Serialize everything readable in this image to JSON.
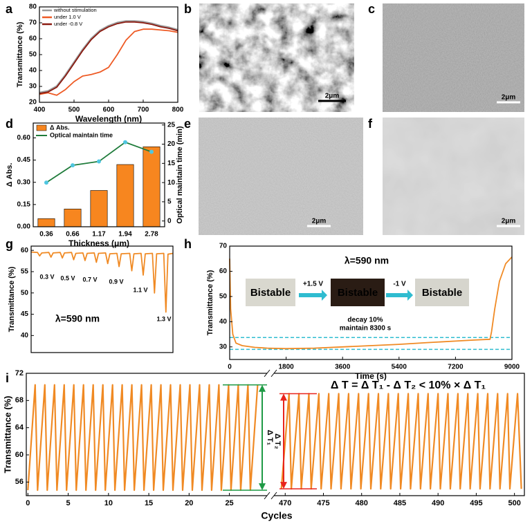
{
  "panel_labels": [
    "a",
    "b",
    "c",
    "d",
    "e",
    "f",
    "g",
    "h",
    "i"
  ],
  "images": [
    {
      "scale_bar": "2μm"
    },
    {
      "scale_bar": "2μm"
    },
    {
      "scale_bar": "2μm"
    },
    {
      "scale_bar": "2μm"
    }
  ],
  "chart_data": [
    {
      "type": "line",
      "x_label": "Wavelength (nm)",
      "y_label": "Transmittance (%)",
      "xlim": [
        400,
        800
      ],
      "ylim": [
        20,
        80
      ],
      "xticks": [
        400,
        500,
        600,
        700,
        800
      ],
      "yticks": [
        20,
        30,
        40,
        50,
        60,
        70,
        80
      ],
      "legend": "upper left",
      "x": [
        400,
        425,
        450,
        475,
        500,
        525,
        550,
        575,
        600,
        625,
        650,
        675,
        700,
        725,
        750,
        775,
        800
      ],
      "series": [
        {
          "name": "without stimulation",
          "color": "#9a9a9a",
          "values": [
            26,
            27,
            30,
            37,
            45,
            53,
            60,
            65,
            68,
            70,
            71,
            71,
            70.5,
            69.5,
            68,
            67,
            65.5
          ]
        },
        {
          "name": "under 1.0 V",
          "color": "#ee5a24",
          "values": [
            25,
            26,
            24.5,
            28,
            33,
            36.5,
            37.5,
            39,
            42,
            50,
            59,
            64.5,
            66,
            66,
            65.5,
            65,
            64
          ]
        },
        {
          "name": "under -0.8 V",
          "color": "#8b1a10",
          "values": [
            25.5,
            26.5,
            29.5,
            36.5,
            44.5,
            52.5,
            59.5,
            64.5,
            67.5,
            69.5,
            70.5,
            70.5,
            70,
            69,
            67.5,
            66.5,
            65
          ]
        }
      ]
    },
    {
      "type": "combo",
      "x_label": "Thickness (μm)",
      "y_label": "Δ Abs.",
      "y2_label": "Optical maintain time (min)",
      "categories": [
        "0.36",
        "0.66",
        "1.17",
        "1.94",
        "2.78"
      ],
      "ylim": [
        0,
        0.7
      ],
      "yticks": [
        {
          "value": 0,
          "label": "0.00"
        },
        0.15,
        {
          "value": 0.3,
          "label": "0.30"
        },
        0.45,
        {
          "value": 0.6,
          "label": "0.60"
        }
      ],
      "y2lim": [
        -1.5,
        25.5
      ],
      "y2ticks": [
        0,
        5,
        10,
        15,
        20,
        25
      ],
      "legend": "upper left",
      "series": [
        {
          "name": "Δ Abs.",
          "type": "bar",
          "color": "#f7861f",
          "values": [
            0.055,
            0.12,
            0.245,
            0.42,
            0.54
          ]
        },
        {
          "name": "Optical maintain time",
          "type": "line",
          "axis": "y2",
          "color": "#1e7b3a",
          "marker_color": "#4fc6e0",
          "values": [
            10,
            14.5,
            15.5,
            20.5,
            18
          ]
        }
      ]
    },
    {
      "type": "line",
      "y_label": "Transmittance (%)",
      "xlim": [
        0,
        100
      ],
      "ylim": [
        36,
        61
      ],
      "yticks": [
        40,
        45,
        50,
        55,
        60
      ],
      "color": "#f08a24",
      "annotations": [
        "0.3 V",
        "0.5 V",
        "0.7 V",
        "0.9 V",
        "1.1 V",
        "1.3 V",
        "λ=590 nm"
      ],
      "x": [
        0,
        4.5,
        6,
        7.5,
        12.5,
        14,
        15.5,
        20.5,
        22,
        23.5,
        28.5,
        30,
        31.5,
        36.5,
        38,
        39.5,
        44.5,
        46,
        47.5,
        52.5,
        54,
        55.5,
        60.5,
        62,
        63.5,
        69.5,
        71,
        72.5,
        77.5,
        79,
        80.5,
        85.5,
        87,
        88.5,
        93.5,
        95,
        96.5,
        100
      ],
      "values": [
        59.6,
        59.5,
        58.7,
        59.4,
        59.5,
        58.4,
        59.4,
        59.5,
        58.2,
        59.4,
        59.5,
        57.8,
        59.3,
        59.4,
        57.6,
        59.3,
        59.4,
        57.2,
        59.3,
        59.4,
        56.9,
        59.2,
        59.3,
        56.2,
        59.2,
        59.3,
        55.2,
        59.2,
        59.3,
        54.2,
        59.2,
        59.3,
        50,
        59.2,
        59.3,
        45.5,
        59.1,
        59.3
      ]
    },
    {
      "type": "line",
      "x_label": "Time (s)",
      "y_label": "Transmittance (%)",
      "xlim": [
        0,
        9000
      ],
      "ylim": [
        25,
        70
      ],
      "xticks": [
        0,
        1800,
        3600,
        5400,
        7200,
        9000
      ],
      "yticks": [
        30,
        40,
        50,
        60,
        70
      ],
      "color": "#f08a24",
      "hlines": [
        33.7,
        29
      ],
      "hline_color": "#2fbcd0",
      "annotations": [
        "λ=590 nm",
        "decay 10%",
        "maintain 8300 s"
      ],
      "inset": {
        "labels": [
          "Bistable",
          "Bistable",
          "Bistable"
        ],
        "steps": [
          "+1.5 V",
          "-1 V"
        ]
      },
      "x": [
        0,
        30,
        100,
        200,
        400,
        800,
        1200,
        1800,
        2700,
        3600,
        4500,
        5400,
        6300,
        7200,
        7800,
        8300,
        8350,
        8450,
        8600,
        8800,
        9000
      ],
      "values": [
        65,
        45,
        35,
        31.5,
        30.5,
        29.8,
        29.5,
        29.3,
        29.5,
        30,
        30.5,
        31,
        31.7,
        32.3,
        32.7,
        33,
        36,
        45,
        56,
        63,
        65.7
      ]
    },
    {
      "type": "broken_line",
      "x_label": "Cycles",
      "y_label": "Transmittance (%)",
      "ylim": [
        54,
        72
      ],
      "yticks": [
        56,
        60,
        64,
        68,
        72
      ],
      "color": "#f08a24",
      "equation": "Δ T = Δ T₁ - Δ T₂ < 10% × Δ T₁",
      "arrows": [
        {
          "label": "Δ T₁",
          "color": "#1e9a45",
          "values": [
            70.3,
            54.8
          ]
        },
        {
          "label": "Δ T₂",
          "color": "#e8231c",
          "values": [
            69,
            55
          ]
        }
      ],
      "segments": [
        {
          "xlim": [
            -0.2,
            29.5
          ],
          "xticks": [
            0,
            5,
            10,
            15,
            20,
            25
          ],
          "x": [
            0,
            0.9,
            1.2,
            2.1,
            2.4,
            3.3,
            3.6,
            4.5,
            4.8,
            5.7,
            6,
            6.9,
            7.2,
            8.1,
            8.4,
            9.3,
            9.6,
            10.5,
            10.8,
            11.7,
            12,
            12.9,
            13.2,
            14.1,
            14.4,
            15.3,
            15.6,
            16.5,
            16.8,
            17.7,
            18,
            18.9,
            19.2,
            20.1,
            20.4,
            21.3,
            21.6,
            22.5,
            22.8,
            23.7,
            24,
            24.9,
            25.2,
            26.1,
            26.4,
            27.3,
            27.6,
            28.5
          ],
          "values": [
            54.8,
            70.3,
            54.8,
            70.3,
            54.8,
            70.3,
            54.8,
            70.3,
            54.8,
            70.3,
            54.8,
            70.3,
            54.8,
            70.3,
            54.8,
            70.3,
            54.8,
            70.3,
            54.8,
            70.3,
            54.8,
            70.3,
            54.8,
            70.3,
            54.8,
            70.3,
            54.8,
            70.3,
            54.8,
            70.3,
            54.8,
            70.3,
            54.8,
            70.3,
            54.8,
            70.3,
            54.8,
            70.3,
            54.8,
            70.3,
            54.8,
            70.3,
            54.8,
            70.3,
            54.8,
            70.3,
            54.8,
            70.3
          ]
        },
        {
          "xlim": [
            468.8,
            501.3
          ],
          "xticks": [
            470,
            475,
            480,
            485,
            490,
            495,
            500
          ],
          "x": [
            469.5,
            470.5,
            470.8,
            471.8,
            472.1,
            473.1,
            473.4,
            474.4,
            474.7,
            475.7,
            476,
            477,
            477.3,
            478.3,
            478.6,
            479.6,
            479.9,
            480.9,
            481.2,
            482.2,
            482.5,
            483.5,
            483.8,
            484.8,
            485.1,
            486.1,
            486.4,
            487.4,
            487.7,
            488.7,
            489,
            490,
            490.3,
            491.3,
            491.6,
            492.6,
            492.9,
            493.9,
            494.2,
            495.2,
            495.5,
            496.5,
            496.8,
            497.8,
            498.1,
            499.1,
            499.4,
            500.4,
            500.9
          ],
          "values": [
            55,
            69,
            55,
            69,
            55,
            69,
            55,
            69,
            55,
            69,
            55,
            69,
            55,
            69,
            55,
            69,
            55,
            69,
            55,
            69,
            55,
            69,
            55,
            69,
            55,
            69,
            55,
            69,
            55,
            69,
            55,
            69,
            55,
            69,
            55,
            69,
            55,
            69,
            55,
            69,
            55,
            69,
            55,
            69,
            55,
            69,
            55,
            69,
            55
          ]
        }
      ]
    }
  ]
}
